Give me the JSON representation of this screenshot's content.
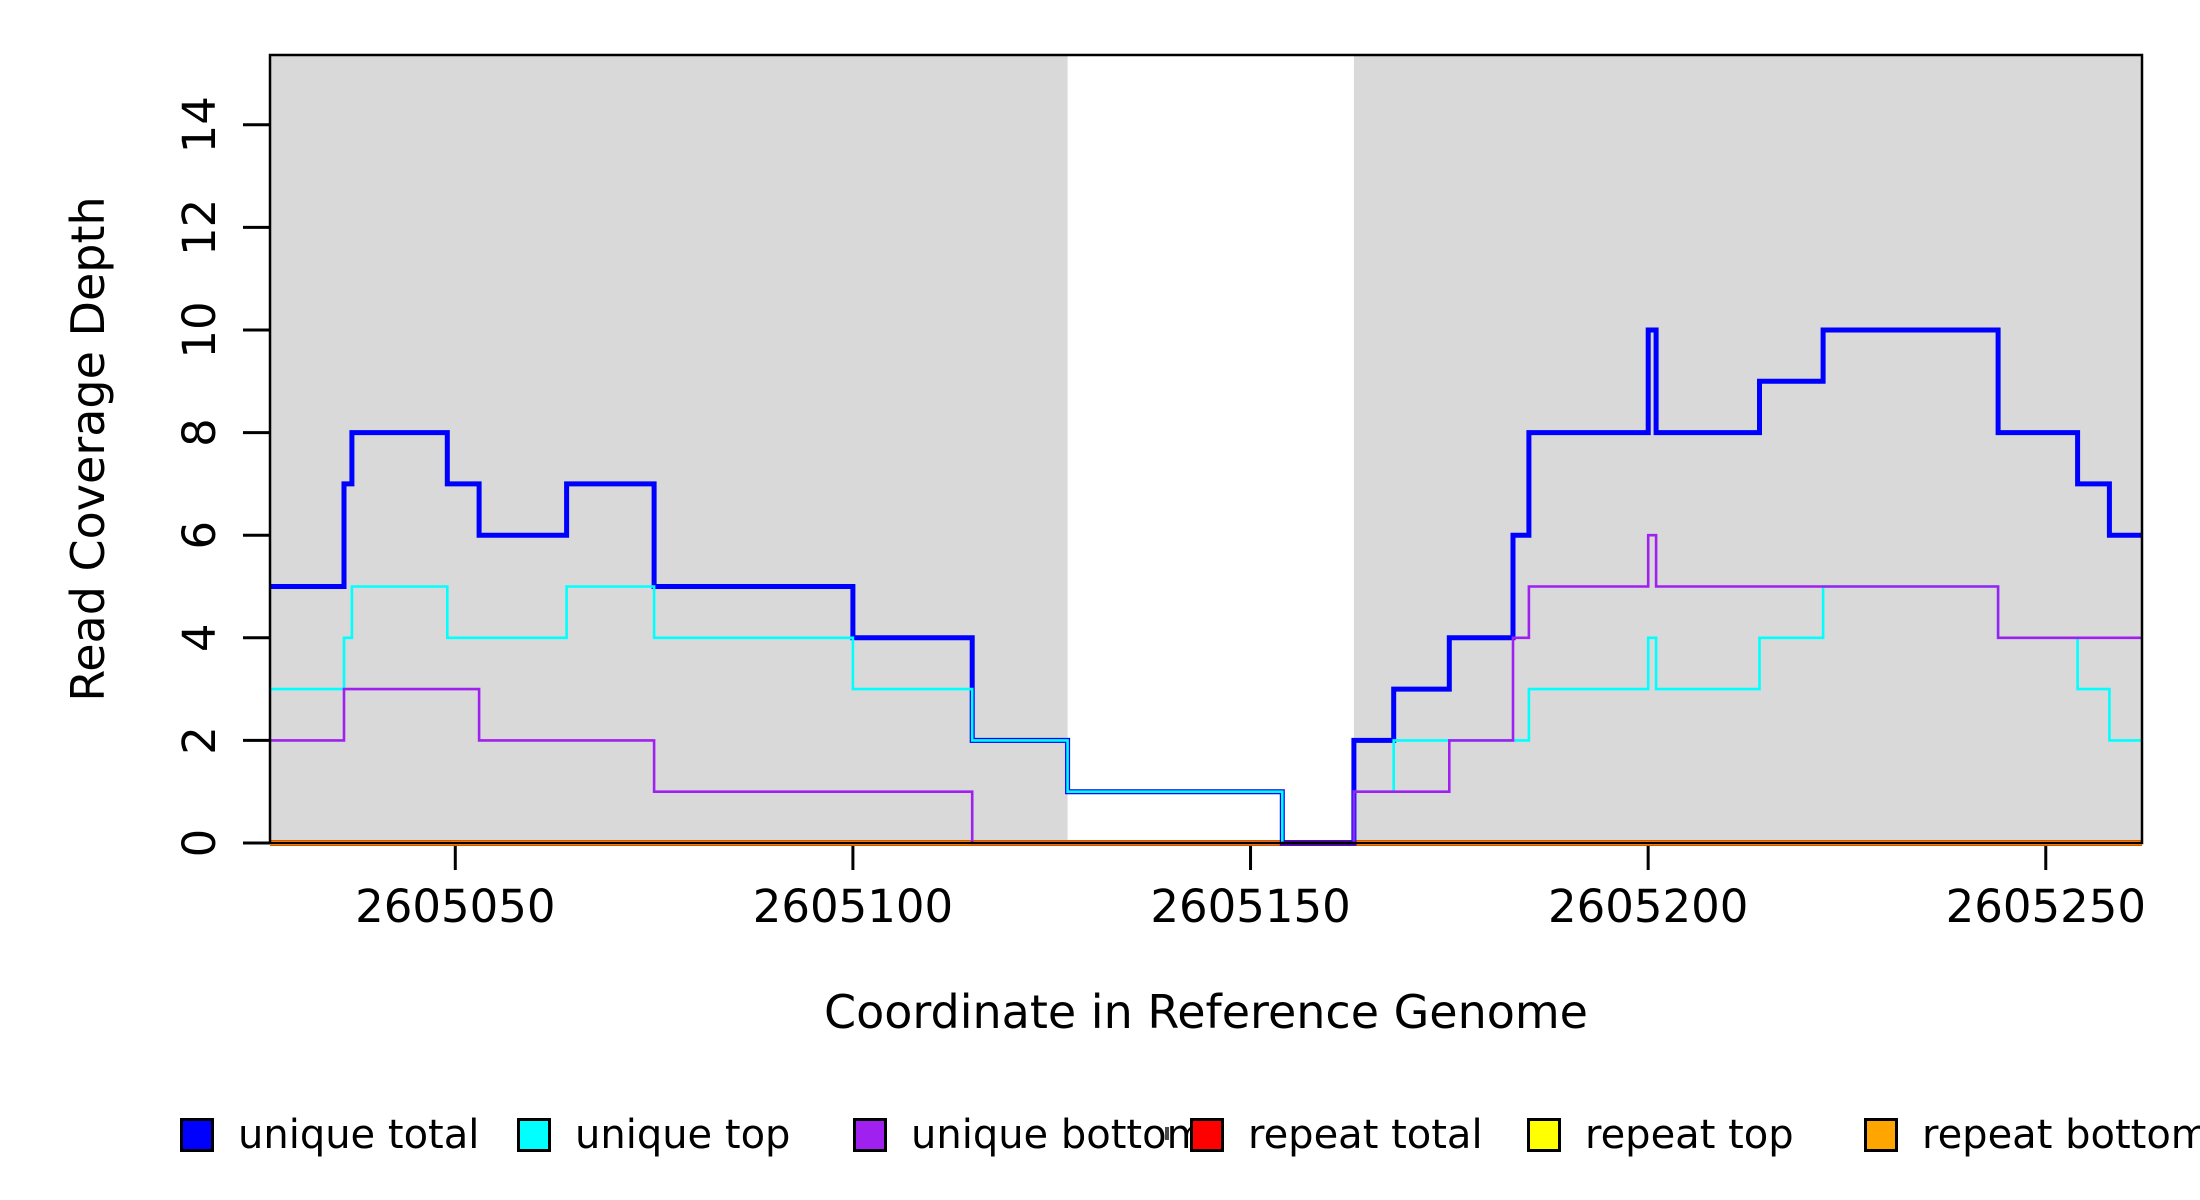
{
  "chart_data": {
    "type": "line",
    "subtype": "step",
    "title": "",
    "xlabel": "Coordinate in Reference Genome",
    "ylabel": "Read Coverage Depth",
    "xlim": [
      2605026.7,
      2605262.1
    ],
    "ylim": [
      0,
      15.36
    ],
    "x_ticks": [
      2605050,
      2605100,
      2605150,
      2605200,
      2605250
    ],
    "y_ticks": [
      0,
      2,
      4,
      6,
      8,
      10,
      12,
      14
    ],
    "grid": false,
    "background_color": "#ffffff",
    "shaded_region_color": "#d9d9d9",
    "shaded_regions": [
      {
        "name": "unique-region-left",
        "x0": 2605026.7,
        "x1": 2605127
      },
      {
        "name": "unique-region-right",
        "x0": 2605163,
        "x1": 2605262.1
      }
    ],
    "series": [
      {
        "name": "repeat total",
        "color": "#ff0000",
        "stroke_width": 6,
        "breakpoints": [
          [
            2605026.7,
            0
          ]
        ]
      },
      {
        "name": "repeat top",
        "color": "#ffff00",
        "stroke_width": 4.6,
        "breakpoints": [
          [
            2605026.7,
            0
          ]
        ]
      },
      {
        "name": "repeat bottom",
        "color": "#ffa500",
        "stroke_width": 3.4,
        "breakpoints": [
          [
            2605026.7,
            0
          ]
        ]
      },
      {
        "name": "unique total",
        "color": "#0000ff",
        "stroke_width": 5,
        "breakpoints": [
          [
            2605026.7,
            5
          ],
          [
            2605036,
            7
          ],
          [
            2605037,
            8
          ],
          [
            2605049,
            7
          ],
          [
            2605053,
            6
          ],
          [
            2605064,
            7
          ],
          [
            2605075,
            5
          ],
          [
            2605100,
            4
          ],
          [
            2605115,
            2
          ],
          [
            2605127,
            1
          ],
          [
            2605154,
            0
          ],
          [
            2605163,
            2
          ],
          [
            2605168,
            3
          ],
          [
            2605175,
            4
          ],
          [
            2605183,
            6
          ],
          [
            2605185,
            8
          ],
          [
            2605200,
            10
          ],
          [
            2605201,
            8
          ],
          [
            2605214,
            9
          ],
          [
            2605222,
            10
          ],
          [
            2605244,
            8
          ],
          [
            2605254,
            7
          ],
          [
            2605258,
            6
          ]
        ]
      },
      {
        "name": "unique top",
        "color": "#00ffff",
        "stroke_width": 2.6,
        "breakpoints": [
          [
            2605026.7,
            3
          ],
          [
            2605036,
            4
          ],
          [
            2605037,
            5
          ],
          [
            2605049,
            4
          ],
          [
            2605064,
            5
          ],
          [
            2605075,
            4
          ],
          [
            2605100,
            3
          ],
          [
            2605115,
            2
          ],
          [
            2605127,
            1
          ],
          [
            2605154,
            0
          ],
          [
            2605163,
            1
          ],
          [
            2605168,
            2
          ],
          [
            2605185,
            3
          ],
          [
            2605200,
            4
          ],
          [
            2605201,
            3
          ],
          [
            2605214,
            4
          ],
          [
            2605222,
            5
          ],
          [
            2605244,
            4
          ],
          [
            2605254,
            3
          ],
          [
            2605258,
            2
          ]
        ]
      },
      {
        "name": "unique bottom",
        "color": "#a020f0",
        "stroke_width": 2.6,
        "breakpoints": [
          [
            2605026.7,
            2
          ],
          [
            2605036,
            3
          ],
          [
            2605053,
            2
          ],
          [
            2605075,
            1
          ],
          [
            2605115,
            0
          ],
          [
            2605163,
            1
          ],
          [
            2605175,
            2
          ],
          [
            2605183,
            4
          ],
          [
            2605185,
            5
          ],
          [
            2605200,
            6
          ],
          [
            2605201,
            5
          ],
          [
            2605244,
            4
          ]
        ]
      }
    ],
    "legend": {
      "position": "bottom",
      "entries": [
        {
          "label": "unique total",
          "color": "#0000ff"
        },
        {
          "label": "unique top",
          "color": "#00ffff"
        },
        {
          "label": "unique bottom",
          "color": "#a020f0"
        },
        {
          "label": "repeat total",
          "color": "#ff0000"
        },
        {
          "label": "repeat top",
          "color": "#ffff00"
        },
        {
          "label": "repeat bottom",
          "color": "#ffa500"
        }
      ]
    }
  }
}
